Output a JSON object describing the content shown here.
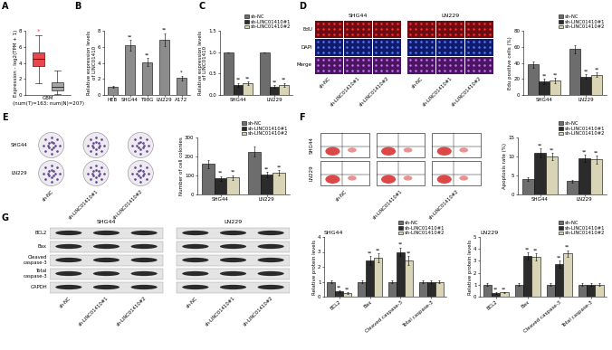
{
  "panel_labels": [
    "A",
    "B",
    "C",
    "D",
    "E",
    "F",
    "G"
  ],
  "chart_data": [
    {
      "type": "box",
      "ylabel": "Expression - log2(TPM + 1)",
      "xlabel": "GBM\n(num(T)=163; num(N)=207)",
      "boxes": [
        {
          "color": "#e8474b",
          "median": 4.5,
          "q1": 3.6,
          "q3": 5.3,
          "whislo": 1.5,
          "whishi": 7.4
        },
        {
          "color": "#a6a6a6",
          "median": 1.0,
          "q1": 0.6,
          "q3": 1.6,
          "whislo": 0.1,
          "whishi": 3.0
        }
      ],
      "annotations": [
        "*"
      ],
      "ylim": [
        0,
        8
      ],
      "yticks": [
        0,
        2,
        4,
        6,
        8
      ],
      "tick_labels": "y"
    },
    {
      "type": "bar",
      "ylabel": "Relative expression levels\nof LINC01410",
      "categories": [
        "HEB",
        "SHG44",
        "T98G",
        "LN229",
        "A172"
      ],
      "values": [
        1.0,
        6.2,
        4.1,
        6.9,
        2.1
      ],
      "errors": [
        0.1,
        0.7,
        0.5,
        0.8,
        0.3
      ],
      "significance": [
        null,
        "**",
        "**",
        "**",
        "*"
      ],
      "color": "#8c8c8c",
      "ylim": [
        0,
        8
      ],
      "yticks": [
        0,
        2,
        4,
        6,
        8
      ]
    },
    {
      "type": "bar",
      "ylabel": "Relative expression levels\nof LINC01410",
      "categories": [
        "SHG44",
        "LN229"
      ],
      "series": [
        {
          "name": "sh-NC",
          "color": "#6d6d6d",
          "values": [
            1.0,
            1.0
          ],
          "errors": [
            0.0,
            0.0
          ],
          "significance": [
            null,
            null
          ]
        },
        {
          "name": "sh-LINC01410#1",
          "color": "#2b2b2b",
          "values": [
            0.24,
            0.2
          ],
          "errors": [
            0.04,
            0.03
          ],
          "significance": [
            "**",
            "**"
          ]
        },
        {
          "name": "sh-LINC01410#2",
          "color": "#d9d4b5",
          "values": [
            0.28,
            0.24
          ],
          "errors": [
            0.04,
            0.04
          ],
          "significance": [
            "**",
            "**"
          ]
        }
      ],
      "ylim": [
        0.0,
        1.5
      ],
      "yticks": [
        0.0,
        0.5,
        1.0,
        1.5
      ],
      "legend": "top"
    },
    {
      "type": "bar",
      "ylabel": "Edu positive cells (%)",
      "categories": [
        "SHG44",
        "LN229"
      ],
      "series": [
        {
          "name": "sh-NC",
          "color": "#6d6d6d",
          "values": [
            38,
            57
          ],
          "errors": [
            4,
            5
          ],
          "significance": [
            null,
            null
          ]
        },
        {
          "name": "sh-LINC01410#1",
          "color": "#2b2b2b",
          "values": [
            17,
            23
          ],
          "errors": [
            3,
            3
          ],
          "significance": [
            "**",
            "**"
          ]
        },
        {
          "name": "sh-LINC01410#2",
          "color": "#d9d4b5",
          "values": [
            18,
            25
          ],
          "errors": [
            3,
            3
          ],
          "significance": [
            "**",
            "**"
          ]
        }
      ],
      "ylim": [
        0,
        80
      ],
      "yticks": [
        0,
        20,
        40,
        60,
        80
      ],
      "legend": "top"
    },
    {
      "type": "bar",
      "ylabel": "Number of cell colonies",
      "categories": [
        "SHG44",
        "LN229"
      ],
      "series": [
        {
          "name": "sh-NC",
          "color": "#6d6d6d",
          "values": [
            160,
            225
          ],
          "errors": [
            20,
            25
          ],
          "significance": [
            null,
            null
          ]
        },
        {
          "name": "sh-LINC01410#1",
          "color": "#2b2b2b",
          "values": [
            85,
            105
          ],
          "errors": [
            12,
            15
          ],
          "significance": [
            "**",
            "**"
          ]
        },
        {
          "name": "sh-LINC01410#2",
          "color": "#d9d4b5",
          "values": [
            90,
            115
          ],
          "errors": [
            12,
            15
          ],
          "significance": [
            "**",
            "**"
          ]
        }
      ],
      "ylim": [
        0,
        300
      ],
      "yticks": [
        0,
        100,
        200,
        300
      ],
      "legend": "top"
    },
    {
      "type": "bar",
      "ylabel": "Apoptosis rate (%)",
      "categories": [
        "SHG44",
        "LN229"
      ],
      "series": [
        {
          "name": "sh-NC",
          "color": "#6d6d6d",
          "values": [
            4.0,
            3.5
          ],
          "errors": [
            0.5,
            0.4
          ],
          "significance": [
            null,
            null
          ]
        },
        {
          "name": "sh-LINC01410#1",
          "color": "#2b2b2b",
          "values": [
            11.0,
            9.5
          ],
          "errors": [
            1.2,
            1.0
          ],
          "significance": [
            "**",
            "**"
          ]
        },
        {
          "name": "sh-LINC01410#2",
          "color": "#d9d4b5",
          "values": [
            10.0,
            9.2
          ],
          "errors": [
            1.0,
            1.0
          ],
          "significance": [
            "**",
            "**"
          ]
        }
      ],
      "ylim": [
        0,
        15
      ],
      "yticks": [
        0,
        5,
        10,
        15
      ],
      "legend": "top"
    },
    {
      "type": "bar",
      "title": "SHG44",
      "ylabel": "Relative protein levels",
      "categories": [
        "BCL2",
        "Bax",
        "Cleaved caspase-3",
        "Total caspase-3"
      ],
      "series": [
        {
          "name": "sh-NC",
          "color": "#6d6d6d",
          "values": [
            1.0,
            1.0,
            1.0,
            1.0
          ],
          "errors": [
            0.1,
            0.1,
            0.1,
            0.1
          ],
          "significance": [
            null,
            null,
            null,
            null
          ]
        },
        {
          "name": "sh-LINC01410#1",
          "color": "#2b2b2b",
          "values": [
            0.35,
            2.4,
            3.0,
            1.0
          ],
          "errors": [
            0.05,
            0.3,
            0.3,
            0.1
          ],
          "significance": [
            "**",
            "**",
            "**",
            null
          ]
        },
        {
          "name": "sh-LINC01410#2",
          "color": "#d9d4b5",
          "values": [
            0.25,
            2.6,
            2.4,
            1.0
          ],
          "errors": [
            0.05,
            0.3,
            0.3,
            0.1
          ],
          "significance": [
            "**",
            "**",
            "**",
            null
          ]
        }
      ],
      "ylim": [
        0,
        4
      ],
      "yticks": [
        0,
        1,
        2,
        3,
        4
      ],
      "legend": "top"
    },
    {
      "type": "bar",
      "title": "LN229",
      "ylabel": "Relative protein levels",
      "categories": [
        "BCL2",
        "Bax",
        "Cleaved caspase-3",
        "Total caspase-3"
      ],
      "series": [
        {
          "name": "sh-NC",
          "color": "#6d6d6d",
          "values": [
            1.0,
            1.0,
            1.0,
            1.0
          ],
          "errors": [
            0.1,
            0.1,
            0.1,
            0.1
          ],
          "significance": [
            null,
            null,
            null,
            null
          ]
        },
        {
          "name": "sh-LINC01410#1",
          "color": "#2b2b2b",
          "values": [
            0.3,
            3.4,
            2.7,
            1.0
          ],
          "errors": [
            0.05,
            0.3,
            0.3,
            0.1
          ],
          "significance": [
            "**",
            "**",
            "**",
            null
          ]
        },
        {
          "name": "sh-LINC01410#2",
          "color": "#d9d4b5",
          "values": [
            0.35,
            3.3,
            3.6,
            1.0
          ],
          "errors": [
            0.05,
            0.3,
            0.3,
            0.1
          ],
          "significance": [
            "**",
            "**",
            "**",
            null
          ]
        }
      ],
      "ylim": [
        0,
        5
      ],
      "yticks": [
        0,
        1,
        2,
        3,
        4,
        5
      ],
      "legend": "top"
    }
  ],
  "images": {
    "D": {
      "groups": [
        "SHG44",
        "LN229"
      ],
      "rows": [
        "EdU",
        "DAPI",
        "Merge"
      ],
      "columns": [
        "sh-NC",
        "sh-LINC01410#1",
        "sh-LINC01410#2"
      ]
    },
    "E": {
      "rows": [
        "SHG44",
        "LN229"
      ],
      "columns": [
        "sh-NC",
        "sh-LINC01410#1",
        "sh-LINC01410#2"
      ]
    },
    "F": {
      "rows": [
        "SHG44",
        "LN229"
      ],
      "columns": [
        "sh-NC",
        "sh-LINC01410#1",
        "sh-LINC01410#2"
      ]
    },
    "G": {
      "groups": [
        "SHG44",
        "LN229"
      ],
      "rows": [
        "BCL2",
        "Bax",
        "Cleaved\ncaspase-3",
        "Total\ncaspase-3",
        "GAPDH"
      ],
      "columns": [
        "sh-NC",
        "sh-LINC01410#1",
        "sh-LINC01410#2"
      ]
    }
  }
}
